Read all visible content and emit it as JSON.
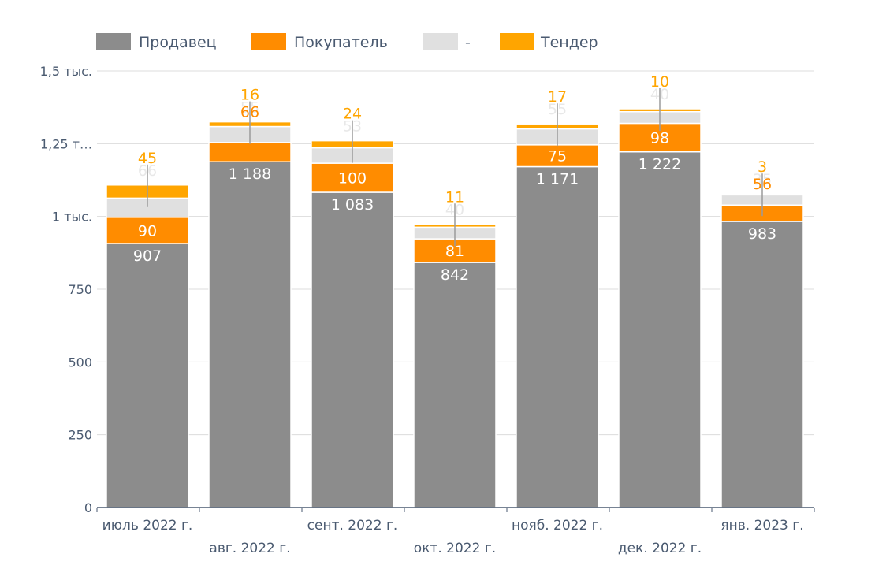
{
  "chart_data": {
    "type": "bar",
    "stacked": true,
    "categories": [
      "июль 2022 г.",
      "авг. 2022 г.",
      "сент. 2022 г.",
      "окт. 2022 г.",
      "нояб. 2022 г.",
      "дек. 2022 г.",
      "янв. 2023 г."
    ],
    "series": [
      {
        "name": "Продавец",
        "color": "#8c8c8c",
        "values": [
          907,
          1188,
          1083,
          842,
          1171,
          1222,
          983
        ],
        "labels": [
          "907",
          "1 188",
          "1 083",
          "842",
          "1 171",
          "1 222",
          "983"
        ]
      },
      {
        "name": "Покупатель",
        "color": "#ff8c00",
        "values": [
          90,
          66,
          100,
          81,
          75,
          98,
          56
        ],
        "labels": [
          "90",
          "66",
          "100",
          "81",
          "75",
          "98",
          "56"
        ]
      },
      {
        "name": "-",
        "color": "#e0e0e0",
        "values": [
          66,
          55,
          53,
          40,
          55,
          40,
          35
        ],
        "labels": [
          "66",
          "55",
          "53",
          "40",
          "55",
          "40",
          "35"
        ]
      },
      {
        "name": "Тендер",
        "color": "#ffa500",
        "values": [
          45,
          16,
          24,
          11,
          17,
          10,
          3
        ],
        "labels": [
          "45",
          "16",
          "24",
          "11",
          "17",
          "10",
          "3"
        ]
      }
    ],
    "y_ticks": [
      {
        "value": 0,
        "label": "0"
      },
      {
        "value": 250,
        "label": "250"
      },
      {
        "value": 500,
        "label": "500"
      },
      {
        "value": 750,
        "label": "750"
      },
      {
        "value": 1000,
        "label": "1 тыс."
      },
      {
        "value": 1250,
        "label": "1,25 т…"
      },
      {
        "value": 1500,
        "label": "1,5 тыс."
      }
    ],
    "ylim": [
      0,
      1500
    ],
    "grid": true,
    "legend_position": "top-left",
    "xlabel": "",
    "ylabel": ""
  }
}
